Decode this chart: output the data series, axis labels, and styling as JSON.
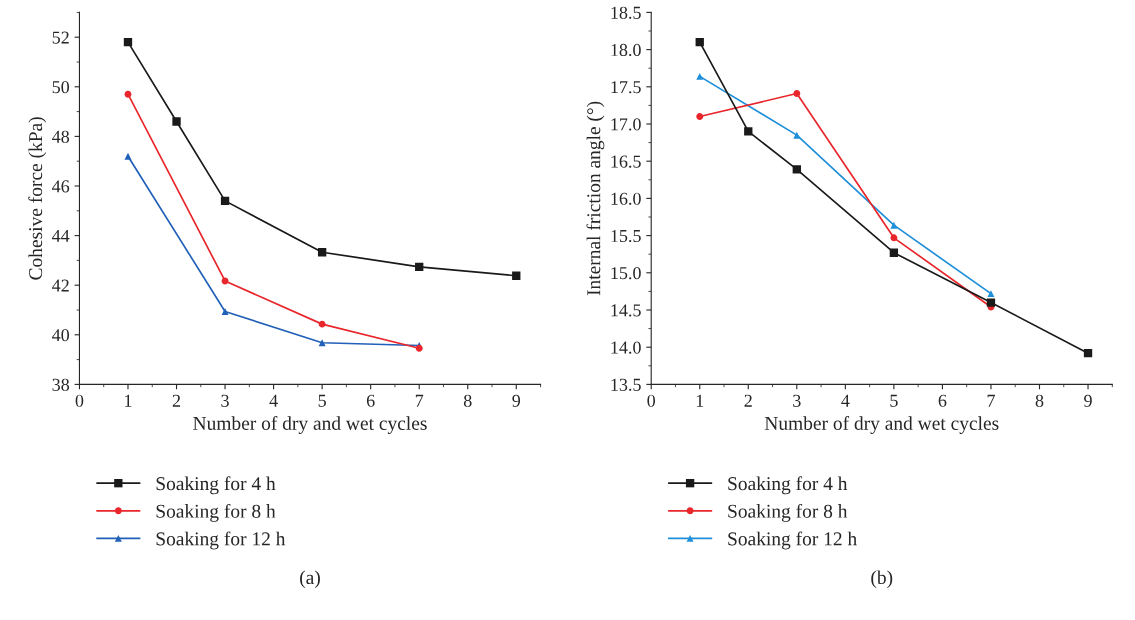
{
  "chart_data": [
    {
      "type": "line",
      "xlabel": "Number of dry and wet cycles",
      "ylabel": "Cohesive force (kPa)",
      "xlim": [
        0,
        9.5
      ],
      "xticks": [
        0,
        1,
        2,
        3,
        4,
        5,
        6,
        7,
        8,
        9
      ],
      "ylim": [
        38,
        53
      ],
      "yticks": [
        38,
        40,
        42,
        44,
        46,
        48,
        50,
        52
      ],
      "grid": false,
      "legend": "bottom",
      "annotations": [
        "(a)"
      ],
      "series": [
        {
          "name": "Soaking for 4 h",
          "color": "#1a1a1a",
          "marker": "square",
          "x": [
            1,
            2,
            3,
            5,
            7,
            9
          ],
          "values": [
            51.8,
            48.6,
            45.4,
            43.33,
            42.74,
            42.38
          ]
        },
        {
          "name": "Soaking for 8 h",
          "color": "#e8262b",
          "marker": "circle",
          "x": [
            1,
            3,
            5,
            7
          ],
          "values": [
            49.7,
            42.17,
            40.43,
            39.46
          ]
        },
        {
          "name": "Soaking for 12 h",
          "color": "#2160b8",
          "marker": "triangle",
          "x": [
            1,
            3,
            5,
            7
          ],
          "values": [
            47.2,
            40.94,
            39.68,
            39.57
          ]
        }
      ]
    },
    {
      "type": "line",
      "xlabel": "Number of dry and wet cycles",
      "ylabel": "Internal friction angle (°)",
      "xlim": [
        0,
        9.5
      ],
      "xticks": [
        0,
        1,
        2,
        3,
        4,
        5,
        6,
        7,
        8,
        9
      ],
      "ylim": [
        13.5,
        18.5
      ],
      "yticks": [
        {
          "value": 13.5,
          "label": "13.5"
        },
        {
          "value": 14,
          "label": "14.0"
        },
        {
          "value": 14.5,
          "label": "14.5"
        },
        {
          "value": 15,
          "label": "15.0"
        },
        {
          "value": 15.5,
          "label": "15.5"
        },
        {
          "value": 16,
          "label": "16.0"
        },
        {
          "value": 16.5,
          "label": "16.5"
        },
        {
          "value": 17,
          "label": "17.0"
        },
        {
          "value": 17.5,
          "label": "17.5"
        },
        {
          "value": 18,
          "label": "18.0"
        },
        {
          "value": 18.5,
          "label": "18.5"
        }
      ],
      "grid": false,
      "legend": "bottom",
      "annotations": [
        "(b)"
      ],
      "series": [
        {
          "name": "Soaking for 4 h",
          "color": "#1a1a1a",
          "marker": "square",
          "x": [
            1,
            2,
            3,
            5,
            7,
            9
          ],
          "values": [
            18.1,
            16.9,
            16.39,
            15.27,
            14.6,
            13.92
          ]
        },
        {
          "name": "Soaking for 8 h",
          "color": "#e8262b",
          "marker": "circle",
          "x": [
            1,
            3,
            5,
            7
          ],
          "values": [
            17.1,
            17.41,
            15.47,
            14.54
          ]
        },
        {
          "name": "Soaking for 12 h",
          "color": "#1e8fd8",
          "marker": "triangle",
          "x": [
            1,
            3,
            5,
            7
          ],
          "values": [
            17.64,
            16.85,
            15.64,
            14.72
          ]
        }
      ]
    }
  ]
}
